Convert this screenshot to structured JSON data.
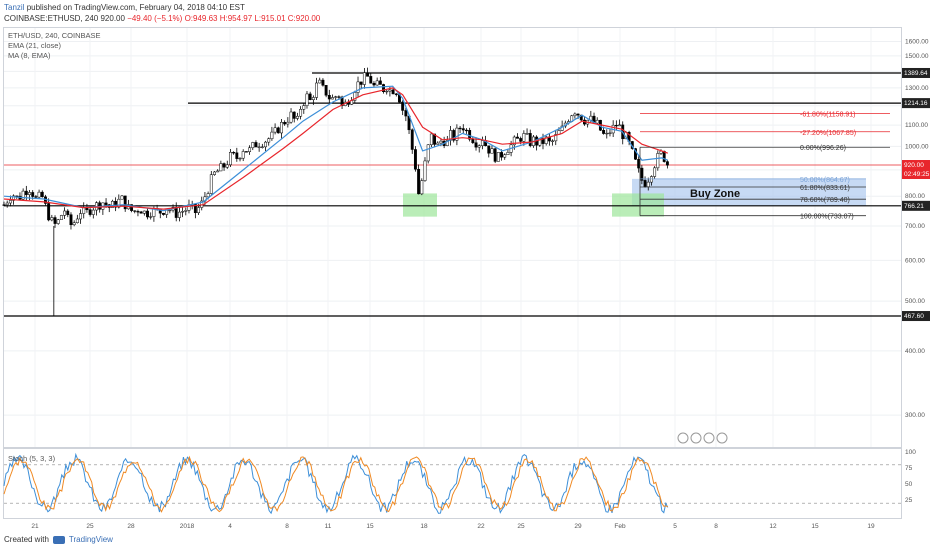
{
  "header": {
    "user": "Tanzil",
    "published": "published on TradingView.com, February 04, 2018 04:10 EST",
    "symbol_line": "COINBASE:ETHUSD, 240",
    "price": "920.00",
    "change": "−49.40 (−5.1%)",
    "ohlc": "O:949.63 H:954.97 L:915.01 C:920.00"
  },
  "indicators": {
    "symbol": "ETH/USD, 240, COINBASE",
    "ema": "EMA (21, close)",
    "ma": "MA (8, EMA)",
    "stoch": "Stoch (5, 3, 3)"
  },
  "footer": {
    "created": "Created with",
    "brand": "TradingView"
  },
  "colors": {
    "ema": "#e8262c",
    "ma": "#3d8fd8",
    "up": "#ffffff",
    "down": "#000000",
    "zone": "#a9c6ee",
    "green": "#9de69a",
    "fib": "#e8262c"
  },
  "chart_data": {
    "type": "candlestick",
    "title": "ETH/USD, 240, COINBASE",
    "y_scale": "log",
    "ylim": [
      260,
      1700
    ],
    "y_ticks": [
      300,
      400,
      500,
      600,
      700,
      800,
      900,
      1000,
      1100,
      1200,
      1300,
      1400,
      1500,
      1600
    ],
    "x_ticks": [
      "21",
      "25",
      "28",
      "2018",
      "4",
      "8",
      "11",
      "15",
      "18",
      "22",
      "25",
      "29",
      "Feb",
      "5",
      "8",
      "12",
      "15",
      "19"
    ],
    "close_path": [
      [
        0,
        770
      ],
      [
        8,
        810
      ],
      [
        14,
        790
      ],
      [
        20,
        820
      ],
      [
        26,
        830
      ],
      [
        32,
        790
      ],
      [
        38,
        800
      ],
      [
        44,
        740
      ],
      [
        50,
        700
      ],
      [
        56,
        720
      ],
      [
        60,
        760
      ],
      [
        64,
        720
      ],
      [
        68,
        700
      ],
      [
        72,
        720
      ],
      [
        76,
        750
      ],
      [
        82,
        740
      ],
      [
        88,
        760
      ],
      [
        94,
        770
      ],
      [
        100,
        780
      ],
      [
        106,
        760
      ],
      [
        112,
        775
      ],
      [
        118,
        790
      ],
      [
        124,
        760
      ],
      [
        130,
        745
      ],
      [
        136,
        760
      ],
      [
        142,
        740
      ],
      [
        148,
        750
      ],
      [
        156,
        745
      ],
      [
        164,
        760
      ],
      [
        172,
        740
      ],
      [
        180,
        750
      ],
      [
        186,
        760
      ],
      [
        192,
        745
      ],
      [
        198,
        770
      ],
      [
        204,
        820
      ],
      [
        210,
        880
      ],
      [
        216,
        900
      ],
      [
        222,
        920
      ],
      [
        228,
        960
      ],
      [
        234,
        950
      ],
      [
        240,
        990
      ],
      [
        246,
        980
      ],
      [
        252,
        1010
      ],
      [
        258,
        1020
      ],
      [
        264,
        1030
      ],
      [
        270,
        1050
      ],
      [
        276,
        1090
      ],
      [
        282,
        1120
      ],
      [
        288,
        1150
      ],
      [
        294,
        1110
      ],
      [
        298,
        1200
      ],
      [
        304,
        1250
      ],
      [
        308,
        1220
      ],
      [
        312,
        1300
      ],
      [
        316,
        1330
      ],
      [
        320,
        1290
      ],
      [
        324,
        1270
      ],
      [
        328,
        1230
      ],
      [
        332,
        1250
      ],
      [
        336,
        1260
      ],
      [
        340,
        1180
      ],
      [
        344,
        1230
      ],
      [
        348,
        1250
      ],
      [
        352,
        1300
      ],
      [
        356,
        1330
      ],
      [
        360,
        1350
      ],
      [
        364,
        1370
      ],
      [
        368,
        1340
      ],
      [
        372,
        1300
      ],
      [
        376,
        1320
      ],
      [
        380,
        1290
      ],
      [
        384,
        1310
      ],
      [
        388,
        1280
      ],
      [
        392,
        1300
      ],
      [
        396,
        1260
      ],
      [
        400,
        1180
      ],
      [
        404,
        1140
      ],
      [
        408,
        1020
      ],
      [
        412,
        940
      ],
      [
        416,
        810
      ],
      [
        420,
        870
      ],
      [
        424,
        960
      ],
      [
        428,
        1050
      ],
      [
        432,
        1020
      ],
      [
        436,
        1000
      ],
      [
        440,
        1040
      ],
      [
        444,
        1010
      ],
      [
        448,
        1050
      ],
      [
        452,
        1040
      ],
      [
        456,
        1080
      ],
      [
        460,
        1100
      ],
      [
        464,
        1070
      ],
      [
        468,
        1050
      ],
      [
        472,
        1030
      ],
      [
        476,
        1010
      ],
      [
        480,
        1040
      ],
      [
        484,
        1000
      ],
      [
        488,
        980
      ],
      [
        492,
        960
      ],
      [
        496,
        950
      ],
      [
        500,
        970
      ],
      [
        504,
        990
      ],
      [
        508,
        1000
      ],
      [
        512,
        1020
      ],
      [
        516,
        1030
      ],
      [
        520,
        1050
      ],
      [
        524,
        1040
      ],
      [
        528,
        1020
      ],
      [
        532,
        1030
      ],
      [
        536,
        1010
      ],
      [
        540,
        1020
      ],
      [
        544,
        1030
      ],
      [
        548,
        1010
      ],
      [
        552,
        1030
      ],
      [
        556,
        1060
      ],
      [
        560,
        1080
      ],
      [
        564,
        1120
      ],
      [
        568,
        1150
      ],
      [
        572,
        1180
      ],
      [
        576,
        1160
      ],
      [
        580,
        1140
      ],
      [
        584,
        1120
      ],
      [
        588,
        1130
      ],
      [
        592,
        1110
      ],
      [
        596,
        1100
      ],
      [
        600,
        1060
      ],
      [
        604,
        1040
      ],
      [
        608,
        1070
      ],
      [
        612,
        1090
      ],
      [
        616,
        1110
      ],
      [
        620,
        1060
      ],
      [
        624,
        1040
      ],
      [
        628,
        1000
      ],
      [
        632,
        950
      ],
      [
        636,
        900
      ],
      [
        640,
        860
      ],
      [
        644,
        850
      ],
      [
        648,
        880
      ],
      [
        652,
        920
      ],
      [
        656,
        950
      ],
      [
        660,
        970
      ],
      [
        664,
        940
      ],
      [
        666,
        920
      ]
    ],
    "ema_21_path": [
      [
        0,
        790
      ],
      [
        40,
        780
      ],
      [
        80,
        760
      ],
      [
        120,
        765
      ],
      [
        160,
        755
      ],
      [
        200,
        770
      ],
      [
        240,
        870
      ],
      [
        280,
        990
      ],
      [
        300,
        1060
      ],
      [
        330,
        1180
      ],
      [
        360,
        1260
      ],
      [
        390,
        1300
      ],
      [
        400,
        1260
      ],
      [
        420,
        1090
      ],
      [
        440,
        1030
      ],
      [
        460,
        1040
      ],
      [
        480,
        1030
      ],
      [
        500,
        1010
      ],
      [
        530,
        1020
      ],
      [
        560,
        1060
      ],
      [
        580,
        1120
      ],
      [
        600,
        1100
      ],
      [
        620,
        1080
      ],
      [
        640,
        1010
      ],
      [
        660,
        980
      ],
      [
        666,
        970
      ]
    ],
    "ma_8_path": [
      [
        0,
        800
      ],
      [
        40,
        790
      ],
      [
        80,
        760
      ],
      [
        120,
        770
      ],
      [
        160,
        750
      ],
      [
        200,
        780
      ],
      [
        240,
        900
      ],
      [
        280,
        1040
      ],
      [
        300,
        1120
      ],
      [
        330,
        1220
      ],
      [
        360,
        1300
      ],
      [
        390,
        1310
      ],
      [
        400,
        1240
      ],
      [
        420,
        980
      ],
      [
        440,
        1010
      ],
      [
        460,
        1060
      ],
      [
        480,
        1030
      ],
      [
        500,
        980
      ],
      [
        530,
        1020
      ],
      [
        560,
        1090
      ],
      [
        580,
        1150
      ],
      [
        600,
        1090
      ],
      [
        620,
        1070
      ],
      [
        640,
        940
      ],
      [
        660,
        950
      ],
      [
        666,
        940
      ]
    ],
    "horizontal_lines": [
      {
        "price": 1389.64,
        "label": "1389.64"
      },
      {
        "price": 1214.16,
        "label": "1214.16"
      },
      {
        "price": 766.21,
        "label": "766.21"
      },
      {
        "price": 467.6,
        "label": "467.60"
      }
    ],
    "current_price": {
      "price": 920.0,
      "label": "920.00",
      "timer": "02:49:25"
    },
    "fibonacci": [
      {
        "label": "-61.80%(1158.91)",
        "price": 1158.91
      },
      {
        "label": "-27.20%(1067.85)",
        "price": 1067.85
      },
      {
        "label": "0.00%(996.26)",
        "price": 996.26
      },
      {
        "label": "50.00%(864.67)",
        "price": 864.67
      },
      {
        "label": "61.80%(833.61)",
        "price": 833.61
      },
      {
        "label": "78.60%(789.40)",
        "price": 789.4
      },
      {
        "label": "100.00%(733.07)",
        "price": 733.07
      }
    ],
    "zone_label": "Buy Zone",
    "stoch": {
      "levels": [
        80,
        20
      ],
      "ticks": [
        100,
        75,
        50,
        25
      ],
      "ylim": [
        0,
        100
      ]
    }
  }
}
